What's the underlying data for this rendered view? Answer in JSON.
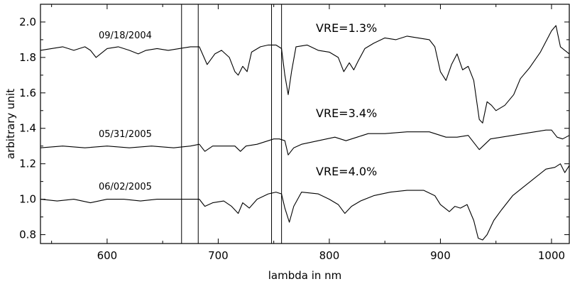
{
  "chart_data": {
    "type": "line",
    "xlabel": "lambda in nm",
    "ylabel": "arbitrary unit",
    "xlim": [
      540,
      1016
    ],
    "ylim": [
      0.75,
      2.1
    ],
    "xticks": [
      600,
      700,
      800,
      900,
      1000
    ],
    "yticks": [
      0.8,
      1.0,
      1.2,
      1.4,
      1.6,
      1.8,
      2.0
    ],
    "xtick_labels": [
      "600",
      "700",
      "800",
      "900",
      "1000"
    ],
    "ytick_labels": [
      "0.8",
      "1.0",
      "1.2",
      "1.4",
      "1.6",
      "1.8",
      "2.0"
    ],
    "grid": false,
    "vertical_lines": [
      667,
      682,
      748,
      757
    ],
    "series": [
      {
        "date_label": "09/18/2004",
        "vre_label": "VRE=1.3%",
        "x": [
          540,
          550,
          560,
          570,
          580,
          585,
          590,
          600,
          610,
          620,
          628,
          635,
          645,
          655,
          665,
          675,
          683,
          690,
          697,
          703,
          710,
          715,
          718,
          722,
          726,
          730,
          738,
          745,
          752,
          757,
          760,
          763,
          766,
          770,
          780,
          790,
          800,
          808,
          813,
          818,
          822,
          826,
          832,
          840,
          850,
          860,
          870,
          880,
          890,
          895,
          900,
          905,
          910,
          915,
          920,
          925,
          930,
          935,
          938,
          942,
          946,
          950,
          958,
          966,
          972,
          980,
          990,
          1000,
          1004,
          1008,
          1012,
          1016
        ],
        "y": [
          1.84,
          1.85,
          1.86,
          1.84,
          1.86,
          1.84,
          1.8,
          1.85,
          1.86,
          1.84,
          1.82,
          1.84,
          1.85,
          1.84,
          1.85,
          1.86,
          1.86,
          1.76,
          1.82,
          1.84,
          1.8,
          1.72,
          1.7,
          1.75,
          1.72,
          1.83,
          1.86,
          1.87,
          1.87,
          1.85,
          1.7,
          1.59,
          1.72,
          1.86,
          1.87,
          1.84,
          1.83,
          1.8,
          1.72,
          1.77,
          1.73,
          1.78,
          1.85,
          1.88,
          1.91,
          1.9,
          1.92,
          1.91,
          1.9,
          1.86,
          1.72,
          1.67,
          1.76,
          1.82,
          1.73,
          1.75,
          1.67,
          1.45,
          1.43,
          1.55,
          1.53,
          1.5,
          1.53,
          1.59,
          1.68,
          1.74,
          1.83,
          1.95,
          1.98,
          1.86,
          1.84,
          1.82
        ]
      },
      {
        "date_label": "05/31/2005",
        "vre_label": "VRE=3.4%",
        "x": [
          540,
          560,
          580,
          600,
          620,
          640,
          660,
          675,
          683,
          688,
          695,
          705,
          715,
          720,
          725,
          735,
          745,
          750,
          755,
          760,
          763,
          768,
          775,
          790,
          805,
          815,
          825,
          835,
          850,
          870,
          890,
          905,
          915,
          925,
          930,
          935,
          945,
          955,
          965,
          975,
          985,
          995,
          1000,
          1005,
          1010,
          1016
        ],
        "y": [
          1.29,
          1.3,
          1.29,
          1.3,
          1.29,
          1.3,
          1.29,
          1.3,
          1.31,
          1.27,
          1.3,
          1.3,
          1.3,
          1.27,
          1.3,
          1.31,
          1.33,
          1.34,
          1.34,
          1.33,
          1.25,
          1.29,
          1.31,
          1.33,
          1.35,
          1.33,
          1.35,
          1.37,
          1.37,
          1.38,
          1.38,
          1.35,
          1.35,
          1.36,
          1.32,
          1.28,
          1.34,
          1.35,
          1.36,
          1.37,
          1.38,
          1.39,
          1.39,
          1.35,
          1.34,
          1.36
        ]
      },
      {
        "date_label": "06/02/2005",
        "vre_label": "VRE=4.0%",
        "x": [
          540,
          555,
          570,
          585,
          600,
          615,
          630,
          645,
          660,
          675,
          683,
          688,
          695,
          705,
          712,
          718,
          722,
          728,
          735,
          745,
          752,
          757,
          760,
          764,
          768,
          775,
          790,
          800,
          808,
          814,
          820,
          828,
          840,
          855,
          870,
          885,
          895,
          900,
          908,
          913,
          918,
          924,
          930,
          934,
          938,
          942,
          948,
          955,
          965,
          975,
          985,
          995,
          1003,
          1008,
          1012,
          1016
        ],
        "y": [
          1.0,
          0.99,
          1.0,
          0.98,
          1.0,
          1.0,
          0.99,
          1.0,
          1.0,
          1.0,
          1.0,
          0.96,
          0.98,
          0.99,
          0.96,
          0.92,
          0.98,
          0.95,
          1.0,
          1.03,
          1.04,
          1.03,
          0.95,
          0.87,
          0.96,
          1.04,
          1.03,
          1.0,
          0.97,
          0.92,
          0.96,
          0.99,
          1.02,
          1.04,
          1.05,
          1.05,
          1.02,
          0.97,
          0.93,
          0.96,
          0.95,
          0.97,
          0.88,
          0.78,
          0.77,
          0.8,
          0.88,
          0.94,
          1.02,
          1.07,
          1.12,
          1.17,
          1.18,
          1.2,
          1.15,
          1.19
        ]
      }
    ]
  }
}
